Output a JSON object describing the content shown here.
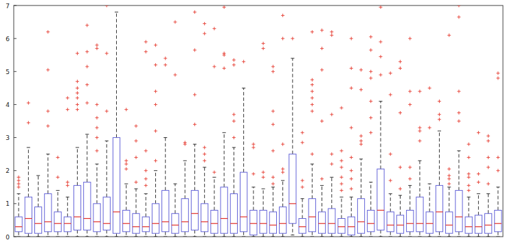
{
  "chart_data": {
    "type": "box",
    "ylim": [
      0,
      7
    ],
    "yticks": [
      0,
      1,
      2,
      3,
      4,
      5,
      6,
      7
    ],
    "tick_labels": "y",
    "grid": false,
    "color": "#6464d8",
    "boxes": [
      {
        "q1": 0.15,
        "median": 0.3,
        "q3": 0.6,
        "whisker_low": 0,
        "whisker_high": 1.3,
        "outliers": [
          1.5,
          1.6,
          1.7,
          1.8
        ]
      },
      {
        "q1": 0.1,
        "median": 0.55,
        "q3": 1.2,
        "whisker_low": 0,
        "whisker_high": 2.7,
        "outliers": [
          3.45,
          4.05
        ]
      },
      {
        "q1": 0.1,
        "median": 0.4,
        "q3": 0.9,
        "whisker_low": 0,
        "whisker_high": 1.85,
        "outliers": []
      },
      {
        "q1": 0.15,
        "median": 0.45,
        "q3": 1.3,
        "whisker_low": 0,
        "whisker_high": 2.5,
        "outliers": [
          3.35,
          3.8,
          5.05,
          6.2
        ]
      },
      {
        "q1": 0.15,
        "median": 0.4,
        "q3": 0.75,
        "whisker_low": 0,
        "whisker_high": 1.4,
        "outliers": [
          1.8,
          2.4
        ]
      },
      {
        "q1": 0.15,
        "median": 0.4,
        "q3": 0.6,
        "whisker_low": 0,
        "whisker_high": 1.2,
        "outliers": [
          1.55,
          1.65,
          3.85,
          4.2
        ]
      },
      {
        "q1": 0.2,
        "median": 0.6,
        "q3": 1.55,
        "whisker_low": 0,
        "whisker_high": 2.7,
        "outliers": [
          3.85,
          4.0,
          4.2,
          4.35,
          4.5,
          4.7,
          5.55
        ]
      },
      {
        "q1": 0.2,
        "median": 0.55,
        "q3": 1.65,
        "whisker_low": 0,
        "whisker_high": 3.1,
        "outliers": [
          4.05,
          4.6,
          5.15,
          5.6,
          6.4
        ]
      },
      {
        "q1": 0.15,
        "median": 0.45,
        "q3": 1.0,
        "whisker_low": 0,
        "whisker_high": 2.2,
        "outliers": [
          2.6,
          3.0,
          3.3,
          3.6,
          4.0,
          5.7,
          5.8
        ]
      },
      {
        "q1": 0.2,
        "median": 0.4,
        "q3": 1.2,
        "whisker_low": 0,
        "whisker_high": 2.9,
        "outliers": [
          3.8,
          5.55,
          7.0
        ]
      },
      {
        "q1": 0.1,
        "median": 0.75,
        "q3": 3.0,
        "whisker_low": 0,
        "whisker_high": 6.8,
        "outliers": []
      },
      {
        "q1": 0.15,
        "median": 0.4,
        "q3": 0.8,
        "whisker_low": 0,
        "whisker_high": 1.6,
        "outliers": [
          2.05,
          2.2,
          2.3,
          3.85
        ]
      },
      {
        "q1": 0.1,
        "median": 0.3,
        "q3": 0.7,
        "whisker_low": 0,
        "whisker_high": 1.45,
        "outliers": [
          1.65,
          2.4,
          2.9,
          3.35
        ]
      },
      {
        "q1": 0.15,
        "median": 0.3,
        "q3": 0.6,
        "whisker_low": 0,
        "whisker_high": 1.3,
        "outliers": [
          1.55,
          1.75,
          2.0,
          2.6,
          5.6,
          5.9
        ]
      },
      {
        "q1": 0.1,
        "median": 0.4,
        "q3": 1.0,
        "whisker_low": 0,
        "whisker_high": 2.0,
        "outliers": [
          2.3,
          3.2,
          4.0,
          4.4,
          5.2,
          5.8
        ]
      },
      {
        "q1": 0.15,
        "median": 0.45,
        "q3": 1.4,
        "whisker_low": 0,
        "whisker_high": 3.0,
        "outliers": [
          5.2,
          5.4
        ]
      },
      {
        "q1": 0.1,
        "median": 0.35,
        "q3": 0.7,
        "whisker_low": 0,
        "whisker_high": 1.6,
        "outliers": [
          4.9,
          6.5
        ]
      },
      {
        "q1": 0.15,
        "median": 0.45,
        "q3": 1.15,
        "whisker_low": 0,
        "whisker_high": 2.3,
        "outliers": [
          2.8,
          2.85
        ]
      },
      {
        "q1": 0.2,
        "median": 0.7,
        "q3": 1.4,
        "whisker_low": 0,
        "whisker_high": 2.8,
        "outliers": [
          3.4,
          4.3,
          5.65,
          6.8
        ]
      },
      {
        "q1": 0.15,
        "median": 0.45,
        "q3": 1.0,
        "whisker_low": 0,
        "whisker_high": 2.1,
        "outliers": [
          2.3,
          2.5,
          2.7,
          6.15,
          6.45
        ]
      },
      {
        "q1": 0.1,
        "median": 0.4,
        "q3": 0.8,
        "whisker_low": 0,
        "whisker_high": 1.8,
        "outliers": [
          1.95,
          5.15,
          6.3
        ]
      },
      {
        "q1": 0.1,
        "median": 0.55,
        "q3": 1.5,
        "whisker_low": 0,
        "whisker_high": 3.15,
        "outliers": [
          5.1,
          5.5,
          5.55,
          6.95
        ]
      },
      {
        "q1": 0.1,
        "median": 0.4,
        "q3": 1.3,
        "whisker_low": 0,
        "whisker_high": 2.7,
        "outliers": [
          3.0,
          3.5,
          3.7,
          5.2,
          5.35
        ]
      },
      {
        "q1": 0.15,
        "median": 0.6,
        "q3": 1.95,
        "whisker_low": 0,
        "whisker_high": 4.5,
        "outliers": [
          5.3
        ]
      },
      {
        "q1": 0.05,
        "median": 0.4,
        "q3": 0.8,
        "whisker_low": 0,
        "whisker_high": 1.5,
        "outliers": [
          1.9,
          2.7,
          2.8
        ]
      },
      {
        "q1": 0.1,
        "median": 0.4,
        "q3": 0.8,
        "whisker_low": 0,
        "whisker_high": 1.45,
        "outliers": [
          1.8,
          1.95,
          5.7,
          5.85
        ]
      },
      {
        "q1": 0.1,
        "median": 0.35,
        "q3": 0.75,
        "whisker_low": 0,
        "whisker_high": 1.5,
        "outliers": [
          1.6,
          1.8,
          2.6,
          3.4,
          3.8,
          5.0,
          5.15
        ]
      },
      {
        "q1": 0.1,
        "median": 0.4,
        "q3": 0.9,
        "whisker_low": 0,
        "whisker_high": 1.7,
        "outliers": [
          1.95,
          2.05,
          2.8,
          6.0,
          6.7
        ]
      },
      {
        "q1": 0.4,
        "median": 1.0,
        "q3": 2.5,
        "whisker_low": 0.05,
        "whisker_high": 5.4,
        "outliers": [
          6.0
        ]
      },
      {
        "q1": 0.1,
        "median": 0.3,
        "q3": 0.55,
        "whisker_low": 0,
        "whisker_high": 1.15,
        "outliers": [
          1.5,
          1.7,
          2.85,
          3.15
        ]
      },
      {
        "q1": 0.15,
        "median": 0.6,
        "q3": 1.15,
        "whisker_low": 0,
        "whisker_high": 2.2,
        "outliers": [
          2.5,
          3.8,
          4.0,
          4.2,
          4.4,
          4.6,
          4.75,
          6.2
        ]
      },
      {
        "q1": 0.1,
        "median": 0.4,
        "q3": 0.75,
        "whisker_low": 0,
        "whisker_high": 1.55,
        "outliers": [
          1.75,
          3.5,
          5.05,
          5.7,
          6.25
        ]
      },
      {
        "q1": 0.1,
        "median": 0.4,
        "q3": 0.85,
        "whisker_low": 0,
        "whisker_high": 1.8,
        "outliers": [
          2.2,
          2.5,
          3.7,
          6.1,
          6.2
        ]
      },
      {
        "q1": 0.1,
        "median": 0.3,
        "q3": 0.55,
        "whisker_low": 0,
        "whisker_high": 1.2,
        "outliers": [
          1.4,
          1.6,
          1.8,
          2.1,
          2.3,
          2.6,
          3.9
        ]
      },
      {
        "q1": 0.05,
        "median": 0.3,
        "q3": 0.6,
        "whisker_low": 0,
        "whisker_high": 1.2,
        "outliers": [
          1.45,
          1.75,
          2.0,
          2.4,
          3.3,
          4.5,
          5.1,
          6.0
        ]
      },
      {
        "q1": 0.1,
        "median": 0.45,
        "q3": 1.15,
        "whisker_low": 0,
        "whisker_high": 2.35,
        "outliers": [
          2.8,
          2.9,
          3.05,
          4.45,
          5.05
        ]
      },
      {
        "q1": 0.15,
        "median": 0.4,
        "q3": 0.8,
        "whisker_low": 0,
        "whisker_high": 1.65,
        "outliers": [
          3.15,
          3.6,
          4.1,
          4.8,
          5.0,
          5.65,
          6.05
        ]
      },
      {
        "q1": 0.2,
        "median": 0.8,
        "q3": 2.05,
        "whisker_low": 0,
        "whisker_high": 4.1,
        "outliers": [
          4.9,
          5.45,
          5.9,
          6.95
        ]
      },
      {
        "q1": 0.15,
        "median": 0.35,
        "q3": 0.75,
        "whisker_low": 0,
        "whisker_high": 1.3,
        "outliers": [
          1.7,
          2.5,
          4.3,
          4.95
        ]
      },
      {
        "q1": 0.1,
        "median": 0.35,
        "q3": 0.65,
        "whisker_low": 0,
        "whisker_high": 1.25,
        "outliers": [
          1.45,
          2.1,
          3.75,
          5.1,
          5.3
        ]
      },
      {
        "q1": 0.15,
        "median": 0.4,
        "q3": 0.8,
        "whisker_low": 0,
        "whisker_high": 1.55,
        "outliers": [
          1.75,
          2.1,
          4.0,
          4.4,
          6.0
        ]
      },
      {
        "q1": 0.15,
        "median": 0.4,
        "q3": 1.2,
        "whisker_low": 0,
        "whisker_high": 2.3,
        "outliers": [
          2.9,
          3.2,
          3.3,
          4.4
        ]
      },
      {
        "q1": 0.1,
        "median": 0.4,
        "q3": 0.75,
        "whisker_low": 0,
        "whisker_high": 1.6,
        "outliers": [
          3.3,
          4.5
        ]
      },
      {
        "q1": 0.15,
        "median": 0.75,
        "q3": 1.55,
        "whisker_low": 0,
        "whisker_high": 3.2,
        "outliers": [
          3.55,
          3.7,
          4.1
        ]
      },
      {
        "q1": 0.1,
        "median": 0.35,
        "q3": 0.75,
        "whisker_low": 0,
        "whisker_high": 1.5,
        "outliers": [
          1.6,
          1.75,
          1.85,
          2.05,
          6.1
        ]
      },
      {
        "q1": 0.15,
        "median": 0.6,
        "q3": 1.4,
        "whisker_low": 0,
        "whisker_high": 2.6,
        "outliers": [
          3.5,
          3.75,
          4.4,
          6.65,
          7.0
        ]
      },
      {
        "q1": 0.1,
        "median": 0.3,
        "q3": 0.6,
        "whisker_low": 0,
        "whisker_high": 1.2,
        "outliers": [
          1.4,
          1.55,
          1.8,
          1.9,
          2.4,
          2.8
        ]
      },
      {
        "q1": 0.1,
        "median": 0.3,
        "q3": 0.65,
        "whisker_low": 0,
        "whisker_high": 1.3,
        "outliers": [
          1.65,
          1.9,
          3.15
        ]
      },
      {
        "q1": 0.1,
        "median": 0.35,
        "q3": 0.7,
        "whisker_low": 0,
        "whisker_high": 1.3,
        "outliers": [
          1.6,
          2.1,
          2.4,
          2.9,
          3.05
        ]
      },
      {
        "q1": 0.15,
        "median": 0.4,
        "q3": 0.8,
        "whisker_low": 0,
        "whisker_high": 1.5,
        "outliers": [
          2.0,
          2.4,
          4.8,
          4.95
        ]
      }
    ]
  }
}
